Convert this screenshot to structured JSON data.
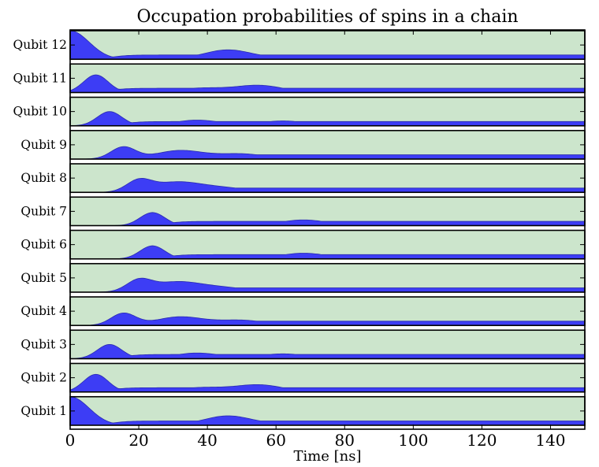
{
  "chart_data": {
    "type": "area",
    "title": "Occupation probabilities of spins in a chain",
    "xlabel": "Time [ns]",
    "ylabel": "",
    "xlim": [
      0,
      150
    ],
    "xticks": [
      0,
      20,
      40,
      60,
      80,
      100,
      120,
      140
    ],
    "grid": false,
    "legend": null,
    "colors": {
      "fill": "#3d3df5",
      "edge": "#2b2bb0",
      "panel_bg": "#cce5cc",
      "frame": "#000000"
    },
    "note": "Stacked small-multiple filled area panels; each panel's y range is 0-1 (relative occupation). Values are estimated from the pixels: peaks are [time_ns, amplitude].",
    "series": [
      {
        "name": "Qubit 12",
        "start": 1.0,
        "decay": 5.5,
        "peaks": [
          [
            46,
            0.33
          ],
          [
            68,
            0.1
          ],
          [
            90,
            0.12
          ],
          [
            115,
            0.08
          ]
        ],
        "tail": 0.15
      },
      {
        "name": "Qubit 11",
        "start": 0.0,
        "decay": 0,
        "peaks": [
          [
            7.5,
            0.62
          ],
          [
            38,
            0.15
          ],
          [
            55,
            0.25
          ],
          [
            100,
            0.15
          ]
        ],
        "tail": 0.15
      },
      {
        "name": "Qubit 10",
        "start": 0.0,
        "decay": 0,
        "peaks": [
          [
            11.5,
            0.5
          ],
          [
            37,
            0.2
          ],
          [
            62,
            0.17
          ],
          [
            85,
            0.12
          ]
        ],
        "tail": 0.15
      },
      {
        "name": "Qubit 9",
        "start": 0.0,
        "decay": 0,
        "peaks": [
          [
            15.5,
            0.42
          ],
          [
            32,
            0.3
          ],
          [
            50,
            0.18
          ],
          [
            80,
            0.15
          ]
        ],
        "tail": 0.15
      },
      {
        "name": "Qubit 8",
        "start": 0.0,
        "decay": 0,
        "peaks": [
          [
            20,
            0.38
          ],
          [
            31,
            0.35
          ],
          [
            45,
            0.15
          ],
          [
            85,
            0.12
          ]
        ],
        "tail": 0.15
      },
      {
        "name": "Qubit 7",
        "start": 0.0,
        "decay": 0,
        "peaks": [
          [
            24,
            0.46
          ],
          [
            68,
            0.2
          ],
          [
            95,
            0.12
          ]
        ],
        "tail": 0.15
      },
      {
        "name": "Qubit 6",
        "start": 0.0,
        "decay": 0,
        "peaks": [
          [
            24,
            0.46
          ],
          [
            68,
            0.2
          ],
          [
            95,
            0.12
          ]
        ],
        "tail": 0.15
      },
      {
        "name": "Qubit 5",
        "start": 0.0,
        "decay": 0,
        "peaks": [
          [
            20,
            0.38
          ],
          [
            31,
            0.35
          ],
          [
            45,
            0.15
          ],
          [
            85,
            0.12
          ]
        ],
        "tail": 0.15
      },
      {
        "name": "Qubit 4",
        "start": 0.0,
        "decay": 0,
        "peaks": [
          [
            15.5,
            0.42
          ],
          [
            32,
            0.3
          ],
          [
            50,
            0.18
          ],
          [
            80,
            0.15
          ]
        ],
        "tail": 0.15
      },
      {
        "name": "Qubit 3",
        "start": 0.0,
        "decay": 0,
        "peaks": [
          [
            11.5,
            0.5
          ],
          [
            37,
            0.2
          ],
          [
            62,
            0.17
          ],
          [
            85,
            0.12
          ]
        ],
        "tail": 0.15
      },
      {
        "name": "Qubit 2",
        "start": 0.0,
        "decay": 0,
        "peaks": [
          [
            7.5,
            0.62
          ],
          [
            38,
            0.15
          ],
          [
            55,
            0.25
          ],
          [
            100,
            0.15
          ]
        ],
        "tail": 0.15
      },
      {
        "name": "Qubit 1",
        "start": 1.0,
        "decay": 5.5,
        "peaks": [
          [
            46,
            0.33
          ],
          [
            68,
            0.1
          ],
          [
            90,
            0.12
          ],
          [
            115,
            0.08
          ]
        ],
        "tail": 0.15
      }
    ]
  }
}
